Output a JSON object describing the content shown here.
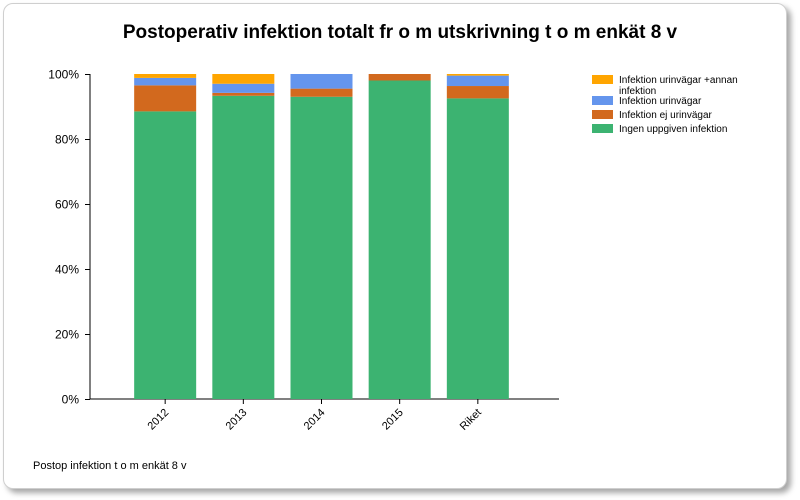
{
  "chart_data": {
    "type": "bar",
    "stacked": true,
    "title": "Postoperativ infektion totalt fr o m utskrivning t o m enkät 8 v",
    "footer": "Postop infektion t o m enkät 8 v",
    "categories": [
      "2012",
      "2013",
      "2014",
      "2015",
      "Riket"
    ],
    "ylim": [
      0,
      100
    ],
    "yticks": [
      "0%",
      "20%",
      "40%",
      "60%",
      "80%",
      "100%"
    ],
    "ytick_values": [
      0,
      20,
      40,
      60,
      80,
      100
    ],
    "legend_position": "top-right",
    "series": [
      {
        "name": "Ingen uppgiven infektion",
        "color": "#3cb371",
        "values": [
          88.5,
          93.3,
          93.0,
          98.0,
          92.5
        ]
      },
      {
        "name": "Infektion ej urinvägar",
        "color": "#d2691e",
        "values": [
          8.0,
          0.9,
          2.5,
          2.0,
          3.8
        ]
      },
      {
        "name": "Infektion urinvägar",
        "color": "#6495ed",
        "values": [
          2.3,
          2.8,
          4.5,
          0.0,
          3.2
        ]
      },
      {
        "name": "Infektion urinvägar +annan infektion",
        "color": "#ffa500",
        "values": [
          1.2,
          3.0,
          0.0,
          0.0,
          0.5
        ]
      }
    ],
    "legend_order": [
      3,
      2,
      1,
      0
    ],
    "legend_lines": [
      [
        "Infektion urinvägar +annan",
        "infektion"
      ],
      [
        "Infektion urinvägar"
      ],
      [
        "Infektion ej urinvägar"
      ],
      [
        "Ingen uppgiven infektion"
      ]
    ]
  }
}
